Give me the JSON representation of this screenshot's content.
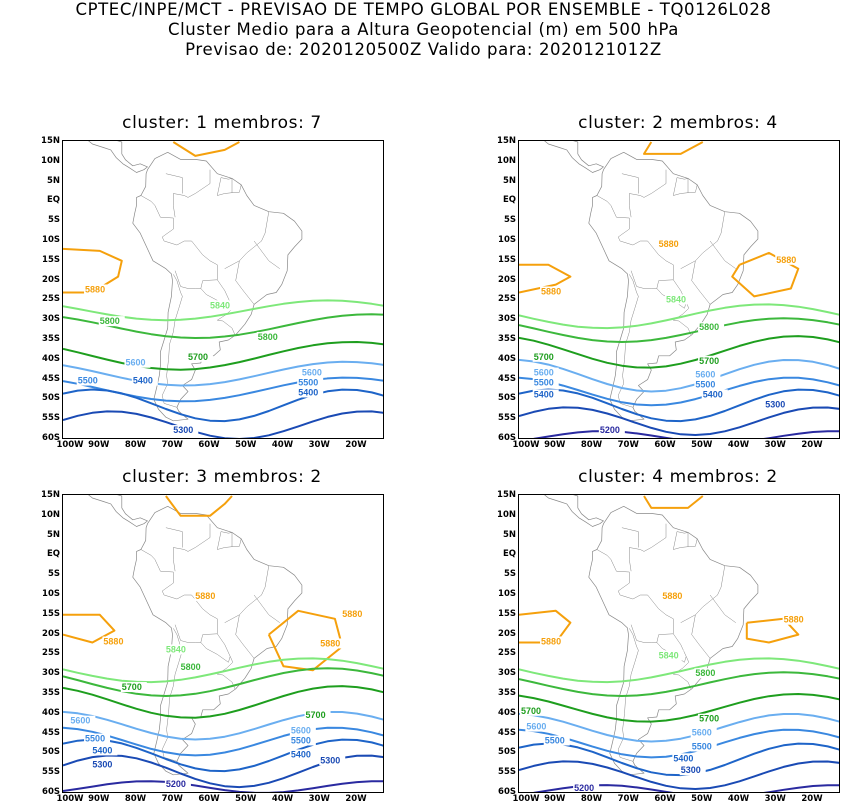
{
  "header": {
    "line1": "CPTEC/INPE/MCT - PREVISAO DE TEMPO GLOBAL POR ENSEMBLE - TQ0126L028",
    "line2": "Cluster Medio para a Altura Geopotencial (m) em 500 hPa",
    "line3": "Previsao de: 2020120500Z    Valido para: 2020121012Z"
  },
  "lat_ticks": [
    "15N",
    "10N",
    "5N",
    "EQ",
    "5S",
    "10S",
    "15S",
    "20S",
    "25S",
    "30S",
    "35S",
    "40S",
    "45S",
    "50S",
    "55S",
    "60S"
  ],
  "lon_ticks": [
    "100W",
    "90W",
    "80W",
    "70W",
    "60W",
    "50W",
    "40W",
    "30W",
    "20W"
  ],
  "colors": {
    "c5880": "#f5a00c",
    "c5840": "#7ee87a",
    "c5800": "#3cb83c",
    "c5700": "#1e9e1e",
    "c5600": "#6aaef0",
    "c5500": "#3a88e0",
    "c5400": "#1e64c8",
    "c5300": "#1a4ab4",
    "c5200": "#2a2aa0",
    "coast": "#888888"
  },
  "panels": [
    {
      "title": "cluster: 1   membros: 7",
      "labels": [
        "5880",
        "5840",
        "5800",
        "5800",
        "5700",
        "5600",
        "5600",
        "5500",
        "5500",
        "5400",
        "5400",
        "5300"
      ]
    },
    {
      "title": "cluster: 2   membros: 4",
      "labels": [
        "5880",
        "5880",
        "5880",
        "5840",
        "5800",
        "5700",
        "5700",
        "5600",
        "5600",
        "5500",
        "5500",
        "5400",
        "5400",
        "5300",
        "5200"
      ]
    },
    {
      "title": "cluster: 3   membros: 2",
      "labels": [
        "5880",
        "5880",
        "5880",
        "5880",
        "5840",
        "5800",
        "5700",
        "5700",
        "5600",
        "5600",
        "5500",
        "5500",
        "5400",
        "5400",
        "5300",
        "5300",
        "5200"
      ]
    },
    {
      "title": "cluster: 4   membros: 2",
      "labels": [
        "5880",
        "5880",
        "5880",
        "5840",
        "5800",
        "5700",
        "5700",
        "5600",
        "5600",
        "5500",
        "5500",
        "5400",
        "5300",
        "5200"
      ]
    }
  ]
}
